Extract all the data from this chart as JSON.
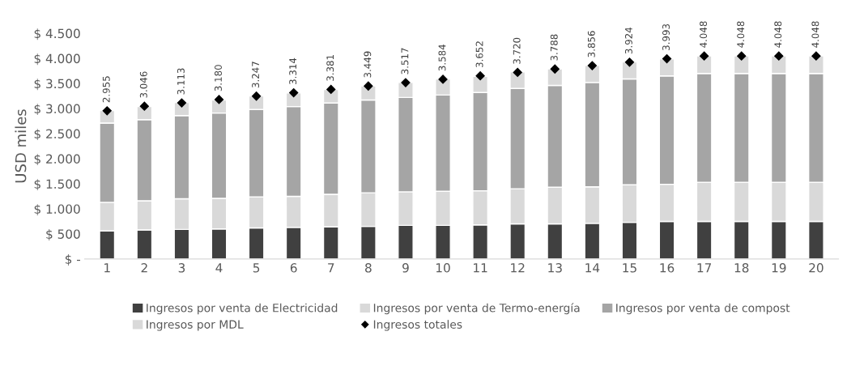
{
  "chart_data": {
    "type": "bar",
    "stacked": true,
    "ylabel": "USD miles",
    "categories": [
      "1",
      "2",
      "3",
      "4",
      "5",
      "6",
      "7",
      "8",
      "9",
      "10",
      "11",
      "12",
      "13",
      "14",
      "15",
      "16",
      "17",
      "18",
      "19",
      "20"
    ],
    "series": [
      {
        "name": "Ingresos por venta de Electricidad",
        "color": "#404040",
        "values": [
          560,
          580,
          590,
          600,
          620,
          630,
          640,
          650,
          670,
          670,
          680,
          700,
          700,
          710,
          730,
          750,
          750,
          750,
          750,
          750
        ]
      },
      {
        "name": "Ingresos por venta de Termo-energía",
        "color": "#d9d9d9",
        "values": [
          570,
          580,
          610,
          610,
          620,
          620,
          650,
          670,
          670,
          680,
          680,
          700,
          730,
          730,
          750,
          740,
          780,
          780,
          780,
          780
        ]
      },
      {
        "name": "Ingresos por venta de compost",
        "color": "#a5a5a5",
        "values": [
          1580,
          1620,
          1660,
          1700,
          1740,
          1790,
          1820,
          1850,
          1880,
          1920,
          1960,
          2000,
          2030,
          2080,
          2110,
          2160,
          2170,
          2170,
          2170,
          2170
        ]
      },
      {
        "name": "Ingresos por MDL",
        "color": "#d9d9d9",
        "values": [
          250,
          260,
          260,
          260,
          270,
          270,
          270,
          280,
          300,
          320,
          320,
          330,
          330,
          340,
          340,
          340,
          350,
          350,
          350,
          350
        ]
      },
      {
        "name": "Ingresos totales",
        "type": "scatter",
        "color": "#000000",
        "marker": "diamond",
        "values": [
          2955,
          3046,
          3113,
          3180,
          3247,
          3314,
          3381,
          3449,
          3517,
          3584,
          3652,
          3720,
          3788,
          3856,
          3924,
          3993,
          4048,
          4048,
          4048,
          4048
        ],
        "value_labels": [
          "2.955",
          "3.046",
          "3.113",
          "3.180",
          "3.247",
          "3.314",
          "3.381",
          "3.449",
          "3.517",
          "3.584",
          "3.652",
          "3.720",
          "3.788",
          "3.856",
          "3.924",
          "3.993",
          "4.048",
          "4.048",
          "4.048",
          "4.048"
        ]
      }
    ],
    "ylim": [
      0,
      4500
    ],
    "yticks": [
      {
        "value": 0,
        "label": "$ -"
      },
      {
        "value": 500,
        "label": "$ 500"
      },
      {
        "value": 1000,
        "label": "$ 1.000"
      },
      {
        "value": 1500,
        "label": "$ 1.500"
      },
      {
        "value": 2000,
        "label": "$ 2.000"
      },
      {
        "value": 2500,
        "label": "$ 2.500"
      },
      {
        "value": 3000,
        "label": "$ 3.000"
      },
      {
        "value": 3500,
        "label": "$ 3.500"
      },
      {
        "value": 4000,
        "label": "$ 4.000"
      },
      {
        "value": 4500,
        "label": "$ 4.500"
      }
    ],
    "grid": false,
    "legend": "bottom"
  }
}
